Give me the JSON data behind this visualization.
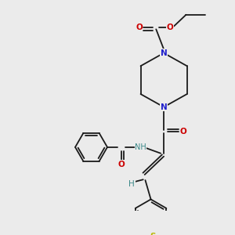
{
  "background_color": "#ebebeb",
  "bond_color": "#1a1a1a",
  "atom_colors": {
    "N": "#2020cc",
    "O": "#cc0000",
    "S": "#b8b800",
    "H": "#3a8888",
    "C": "#1a1a1a"
  },
  "figsize": [
    3.0,
    3.0
  ],
  "dpi": 100,
  "lw": 1.3
}
